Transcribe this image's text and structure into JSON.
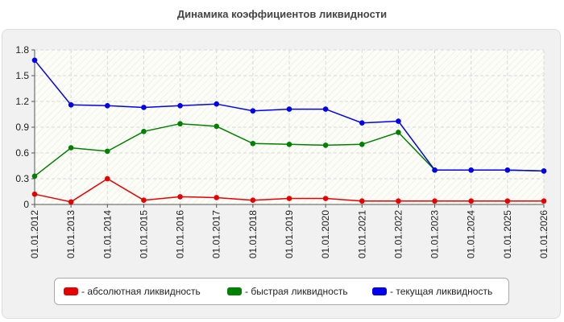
{
  "chart_data": {
    "type": "line",
    "title": "Динамика коэффициентов ликвидности",
    "xlabel": "",
    "ylabel": "",
    "ylim": [
      0,
      1.8
    ],
    "yticks": [
      "0",
      "0.3",
      "0.6",
      "0.9",
      "1.2",
      "1.5",
      "1.8"
    ],
    "grid": true,
    "legend_position": "bottom",
    "categories": [
      "01.01.2012",
      "01.01.2013",
      "01.01.2014",
      "01.01.2015",
      "01.01.2016",
      "01.01.2017",
      "01.01.2018",
      "01.01.2019",
      "01.01.2020",
      "01.01.2021",
      "01.01.2022",
      "01.01.2023",
      "01.01.2024",
      "01.01.2025",
      "01.01.2026"
    ],
    "series": [
      {
        "name": "- абсолютная ликвидность",
        "color": "#e60000",
        "values": [
          0.12,
          0.03,
          0.3,
          0.05,
          0.09,
          0.08,
          0.05,
          0.07,
          0.07,
          0.04,
          0.04,
          0.04,
          0.04,
          0.04,
          0.04
        ]
      },
      {
        "name": "- быстрая ликвидность",
        "color": "#008000",
        "values": [
          0.33,
          0.66,
          0.62,
          0.85,
          0.94,
          0.91,
          0.71,
          0.7,
          0.69,
          0.7,
          0.84,
          0.4,
          0.4,
          0.4,
          0.39
        ]
      },
      {
        "name": "- текущая ликвидность",
        "color": "#0000ee",
        "values": [
          1.68,
          1.16,
          1.15,
          1.13,
          1.15,
          1.17,
          1.09,
          1.11,
          1.11,
          0.95,
          0.97,
          0.4,
          0.4,
          0.4,
          0.39
        ]
      }
    ]
  }
}
